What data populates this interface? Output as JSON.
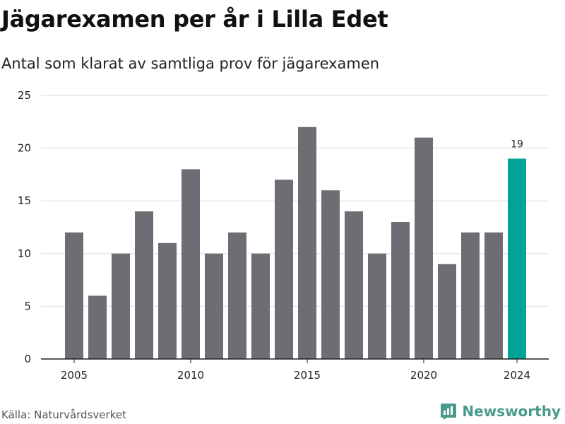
{
  "title": "Jägarexamen per år i Lilla Edet",
  "subtitle": "Antal som klarat av samtliga prov för jägarexamen",
  "source": "Källa: Naturvårdsverket",
  "brand": {
    "name": "Newsworthy",
    "icon": "newsworthy-logo-icon",
    "color": "#4a9a8c"
  },
  "colors": {
    "bar": "#6e6d73",
    "highlight": "#00a398",
    "grid": "#dcdcdc",
    "axis": "#222222"
  },
  "chart_data": {
    "type": "bar",
    "title": "Jägarexamen per år i Lilla Edet",
    "subtitle": "Antal som klarat av samtliga prov för jägarexamen",
    "x": [
      2005,
      2006,
      2007,
      2008,
      2009,
      2010,
      2011,
      2012,
      2013,
      2014,
      2015,
      2016,
      2017,
      2018,
      2019,
      2020,
      2021,
      2022,
      2023,
      2024
    ],
    "values": [
      12,
      6,
      10,
      14,
      11,
      18,
      10,
      12,
      10,
      17,
      22,
      16,
      14,
      10,
      13,
      21,
      9,
      12,
      12,
      19
    ],
    "highlight_index": 19,
    "data_labels": [
      {
        "index": 19,
        "text": "19"
      }
    ],
    "x_ticks": [
      "2005",
      "2010",
      "2015",
      "2020",
      "2024"
    ],
    "y_ticks": [
      "0",
      "5",
      "10",
      "15",
      "20",
      "25"
    ],
    "ylim": [
      0,
      25
    ],
    "xlabel": "",
    "ylabel": "",
    "grid": "horizontal",
    "legend": "none"
  }
}
